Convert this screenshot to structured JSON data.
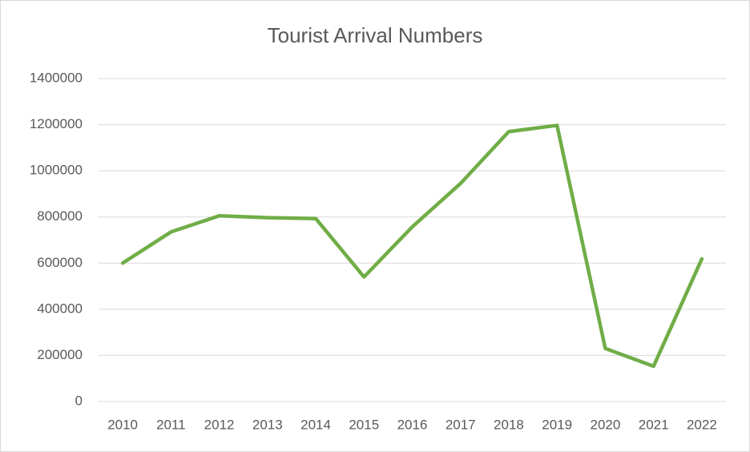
{
  "chart_data": {
    "type": "line",
    "title": "Tourist Arrival Numbers",
    "categories": [
      "2010",
      "2011",
      "2012",
      "2013",
      "2014",
      "2015",
      "2016",
      "2017",
      "2018",
      "2019",
      "2020",
      "2021",
      "2022"
    ],
    "values": [
      600000,
      735000,
      805000,
      797000,
      793000,
      540000,
      757000,
      945000,
      1170000,
      1197000,
      230000,
      153000,
      618000
    ],
    "color": "#70ad47",
    "ylim": [
      0,
      1400000
    ],
    "yticks": [
      0,
      200000,
      400000,
      600000,
      800000,
      1000000,
      1200000,
      1400000
    ],
    "grid": true
  }
}
